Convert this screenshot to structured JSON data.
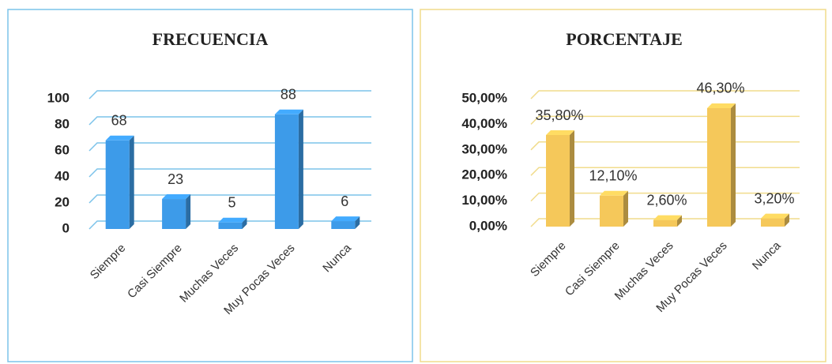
{
  "chart_data": [
    {
      "type": "bar",
      "title": "FRECUENCIA",
      "categories": [
        "Siempre",
        "Casi Siempre",
        "Muchas Veces",
        "Muy Pocas Veces",
        "Nunca"
      ],
      "values": [
        68,
        23,
        5,
        88,
        6
      ],
      "color": "#3d9be9",
      "ylim": [
        0,
        100
      ],
      "yticks": [
        0,
        20,
        40,
        60,
        80,
        100
      ],
      "grid": true
    },
    {
      "type": "bar",
      "title": "PORCENTAJE",
      "categories": [
        "Siempre",
        "Casi Siempre",
        "Muchas Veces",
        "Muy Pocas Veces",
        "Nunca"
      ],
      "values": [
        35.8,
        12.1,
        2.6,
        46.3,
        3.2
      ],
      "value_labels": [
        "35,80%",
        "12,10%",
        "2,60%",
        "46,30%",
        "3,20%"
      ],
      "color": "#f5c85a",
      "ylim": [
        0,
        50
      ],
      "yticks": [
        {
          "value": 0,
          "label": "0,00%"
        },
        {
          "value": 10,
          "label": "10,00%"
        },
        {
          "value": 20,
          "label": "20,00%"
        },
        {
          "value": 30,
          "label": "30,00%"
        },
        {
          "value": 40,
          "label": "40,00%"
        },
        {
          "value": 50,
          "label": "50,00%"
        }
      ],
      "grid": true
    }
  ]
}
